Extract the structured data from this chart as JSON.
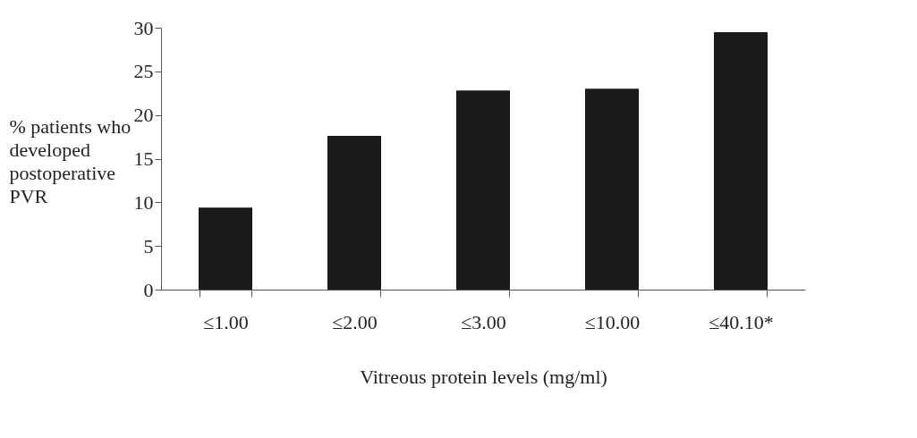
{
  "chart_data": {
    "type": "bar",
    "xlabel": "Vitreous protein levels (mg/ml)",
    "ylabel": "% patients who developed postoperative PVR",
    "categories": [
      "≤1.00",
      "≤2.00",
      "≤3.00",
      "≤10.00",
      "≤40.10*"
    ],
    "values": [
      9.4,
      17.6,
      22.8,
      23.0,
      29.5
    ],
    "color": "#1a1a1a",
    "ylim": [
      0,
      30
    ],
    "yticks": [
      0,
      5,
      10,
      15,
      20,
      25,
      30
    ],
    "grid": false
  }
}
